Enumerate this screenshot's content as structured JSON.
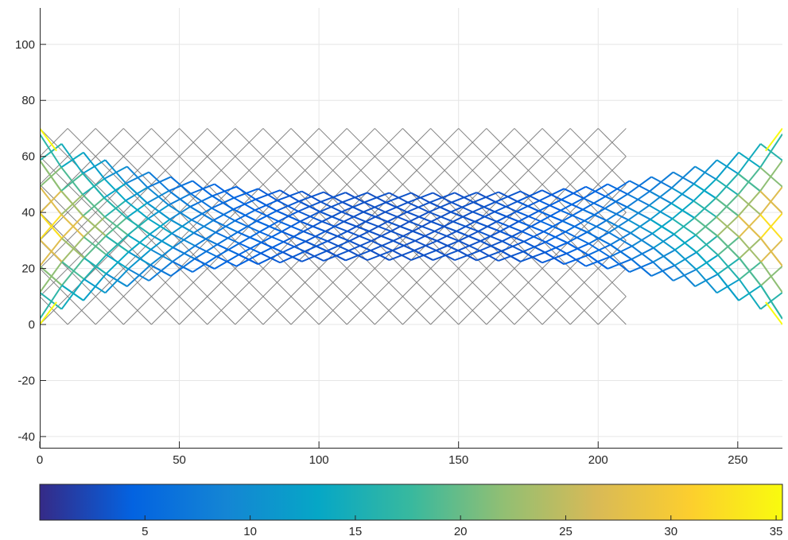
{
  "chart_data": {
    "type": "line",
    "title": "",
    "xlabel": "",
    "ylabel": "",
    "xlim": [
      0,
      266
    ],
    "ylim": [
      -44,
      113
    ],
    "x_ticks": [
      0,
      50,
      100,
      150,
      200,
      250
    ],
    "y_ticks": [
      -40,
      -20,
      0,
      20,
      40,
      60,
      80,
      100
    ],
    "grid": true,
    "description_series": [
      {
        "role": "undeformed-lattice",
        "color": "#808080",
        "x_range": [
          0,
          210
        ],
        "y_range": [
          0,
          70
        ],
        "cell_width": 10,
        "cell_height": 10
      },
      {
        "role": "deformed-lattice",
        "colored_by": "colorbar",
        "x_range": [
          0,
          266
        ],
        "y_range": [
          2,
          68
        ],
        "waist_y_range": [
          23,
          47
        ]
      }
    ],
    "colorbar": {
      "location": "bottom",
      "colormap": "parula",
      "clim": [
        0,
        35.3
      ],
      "ticks": [
        5,
        10,
        15,
        20,
        25,
        30,
        35
      ],
      "colors": [
        "#352a87",
        "#0363e1",
        "#1485d4",
        "#06a7c6",
        "#38b99e",
        "#92bf73",
        "#d9ba56",
        "#fcce2e",
        "#f9fb0e"
      ]
    }
  }
}
